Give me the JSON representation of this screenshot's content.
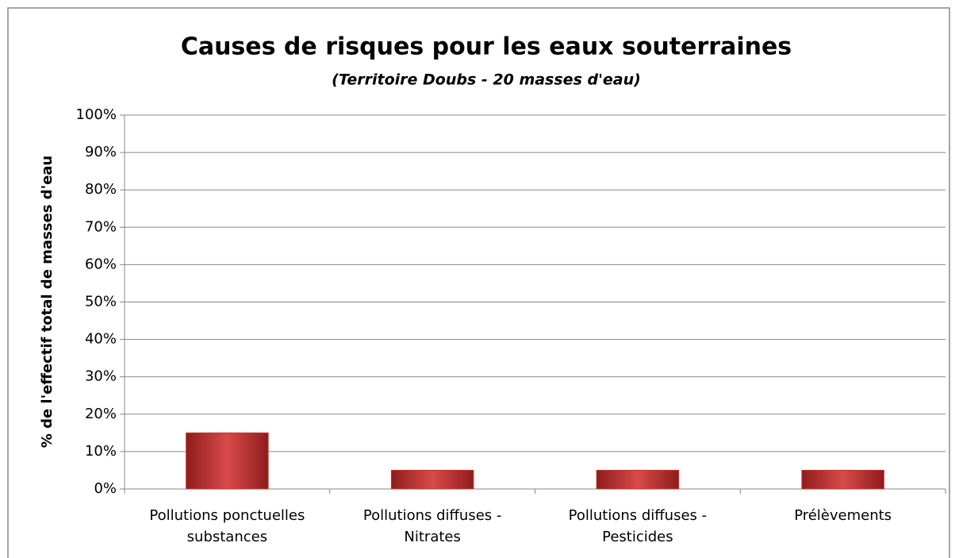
{
  "chart_data": {
    "type": "bar",
    "title": "Causes de risques pour les eaux souterraines",
    "subtitle": "(Territoire Doubs - 20 masses d'eau)",
    "y_label": "% de l'effectif total de masses d'eau",
    "categories": [
      "Pollutions ponctuelles substances",
      "Pollutions diffuses - Nitrates",
      "Pollutions diffuses - Pesticides",
      "Prélèvements"
    ],
    "values": [
      15,
      5,
      5,
      5
    ],
    "color": "#c0392b",
    "ylim": [
      0,
      100
    ],
    "yticks": [
      {
        "value": 0,
        "label": "0%"
      },
      {
        "value": 10,
        "label": "10%"
      },
      {
        "value": 20,
        "label": "20%"
      },
      {
        "value": 30,
        "label": "30%"
      },
      {
        "value": 40,
        "label": "40%"
      },
      {
        "value": 50,
        "label": "50%"
      },
      {
        "value": 60,
        "label": "60%"
      },
      {
        "value": 70,
        "label": "70%"
      },
      {
        "value": 80,
        "label": "80%"
      },
      {
        "value": 90,
        "label": "90%"
      },
      {
        "value": 100,
        "label": "100%"
      }
    ],
    "grid": true
  }
}
